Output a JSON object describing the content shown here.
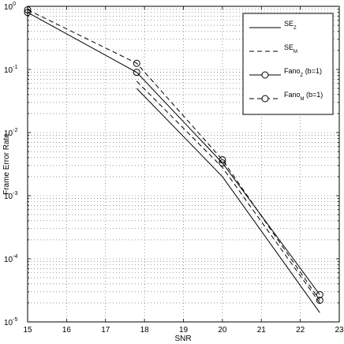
{
  "chart_data": {
    "type": "line",
    "xlabel": "SNR",
    "ylabel": "Frame Error Rate",
    "xlim": [
      15,
      23
    ],
    "ylim": [
      1e-05,
      1
    ],
    "yscale": "log",
    "grid": true,
    "legend_position": "top-right",
    "x_ticks": [
      "15",
      "16",
      "17",
      "18",
      "19",
      "20",
      "21",
      "22",
      "23"
    ],
    "y_ticks": [
      {
        "base": "10",
        "exp": "0",
        "value": 1
      },
      {
        "base": "10",
        "exp": "-1",
        "value": 0.1
      },
      {
        "base": "10",
        "exp": "-2",
        "value": 0.01
      },
      {
        "base": "10",
        "exp": "-3",
        "value": 0.001
      },
      {
        "base": "10",
        "exp": "-4",
        "value": 0.0001
      },
      {
        "base": "10",
        "exp": "-5",
        "value": 1e-05
      }
    ],
    "series": [
      {
        "name": "SE_Z",
        "label_main": "SE",
        "label_sub": "Z",
        "label_rest": "",
        "style": "solid",
        "marker": "none",
        "x": [
          17.8,
          20,
          22.5
        ],
        "y": [
          0.05,
          0.002,
          1.4e-05
        ]
      },
      {
        "name": "SE_M",
        "label_main": "SE",
        "label_sub": "M",
        "label_rest": "",
        "style": "dashed",
        "marker": "none",
        "x": [
          17.8,
          20,
          22.5
        ],
        "y": [
          0.065,
          0.0028,
          2e-05
        ]
      },
      {
        "name": "Fano_Z (b=1)",
        "label_main": "Fano",
        "label_sub": "Z",
        "label_rest": " (b=1)",
        "style": "solid",
        "marker": "circle",
        "x": [
          15,
          17.8,
          20,
          22.5
        ],
        "y": [
          0.8,
          0.09,
          0.0033,
          2.7e-05
        ]
      },
      {
        "name": "Fano_M (b=1)",
        "label_main": "Fano",
        "label_sub": "M",
        "label_rest": " (b=1)",
        "style": "dashed",
        "marker": "circle",
        "x": [
          15,
          17.8,
          20,
          22.5
        ],
        "y": [
          0.88,
          0.125,
          0.0037,
          2.2e-05
        ]
      }
    ]
  }
}
